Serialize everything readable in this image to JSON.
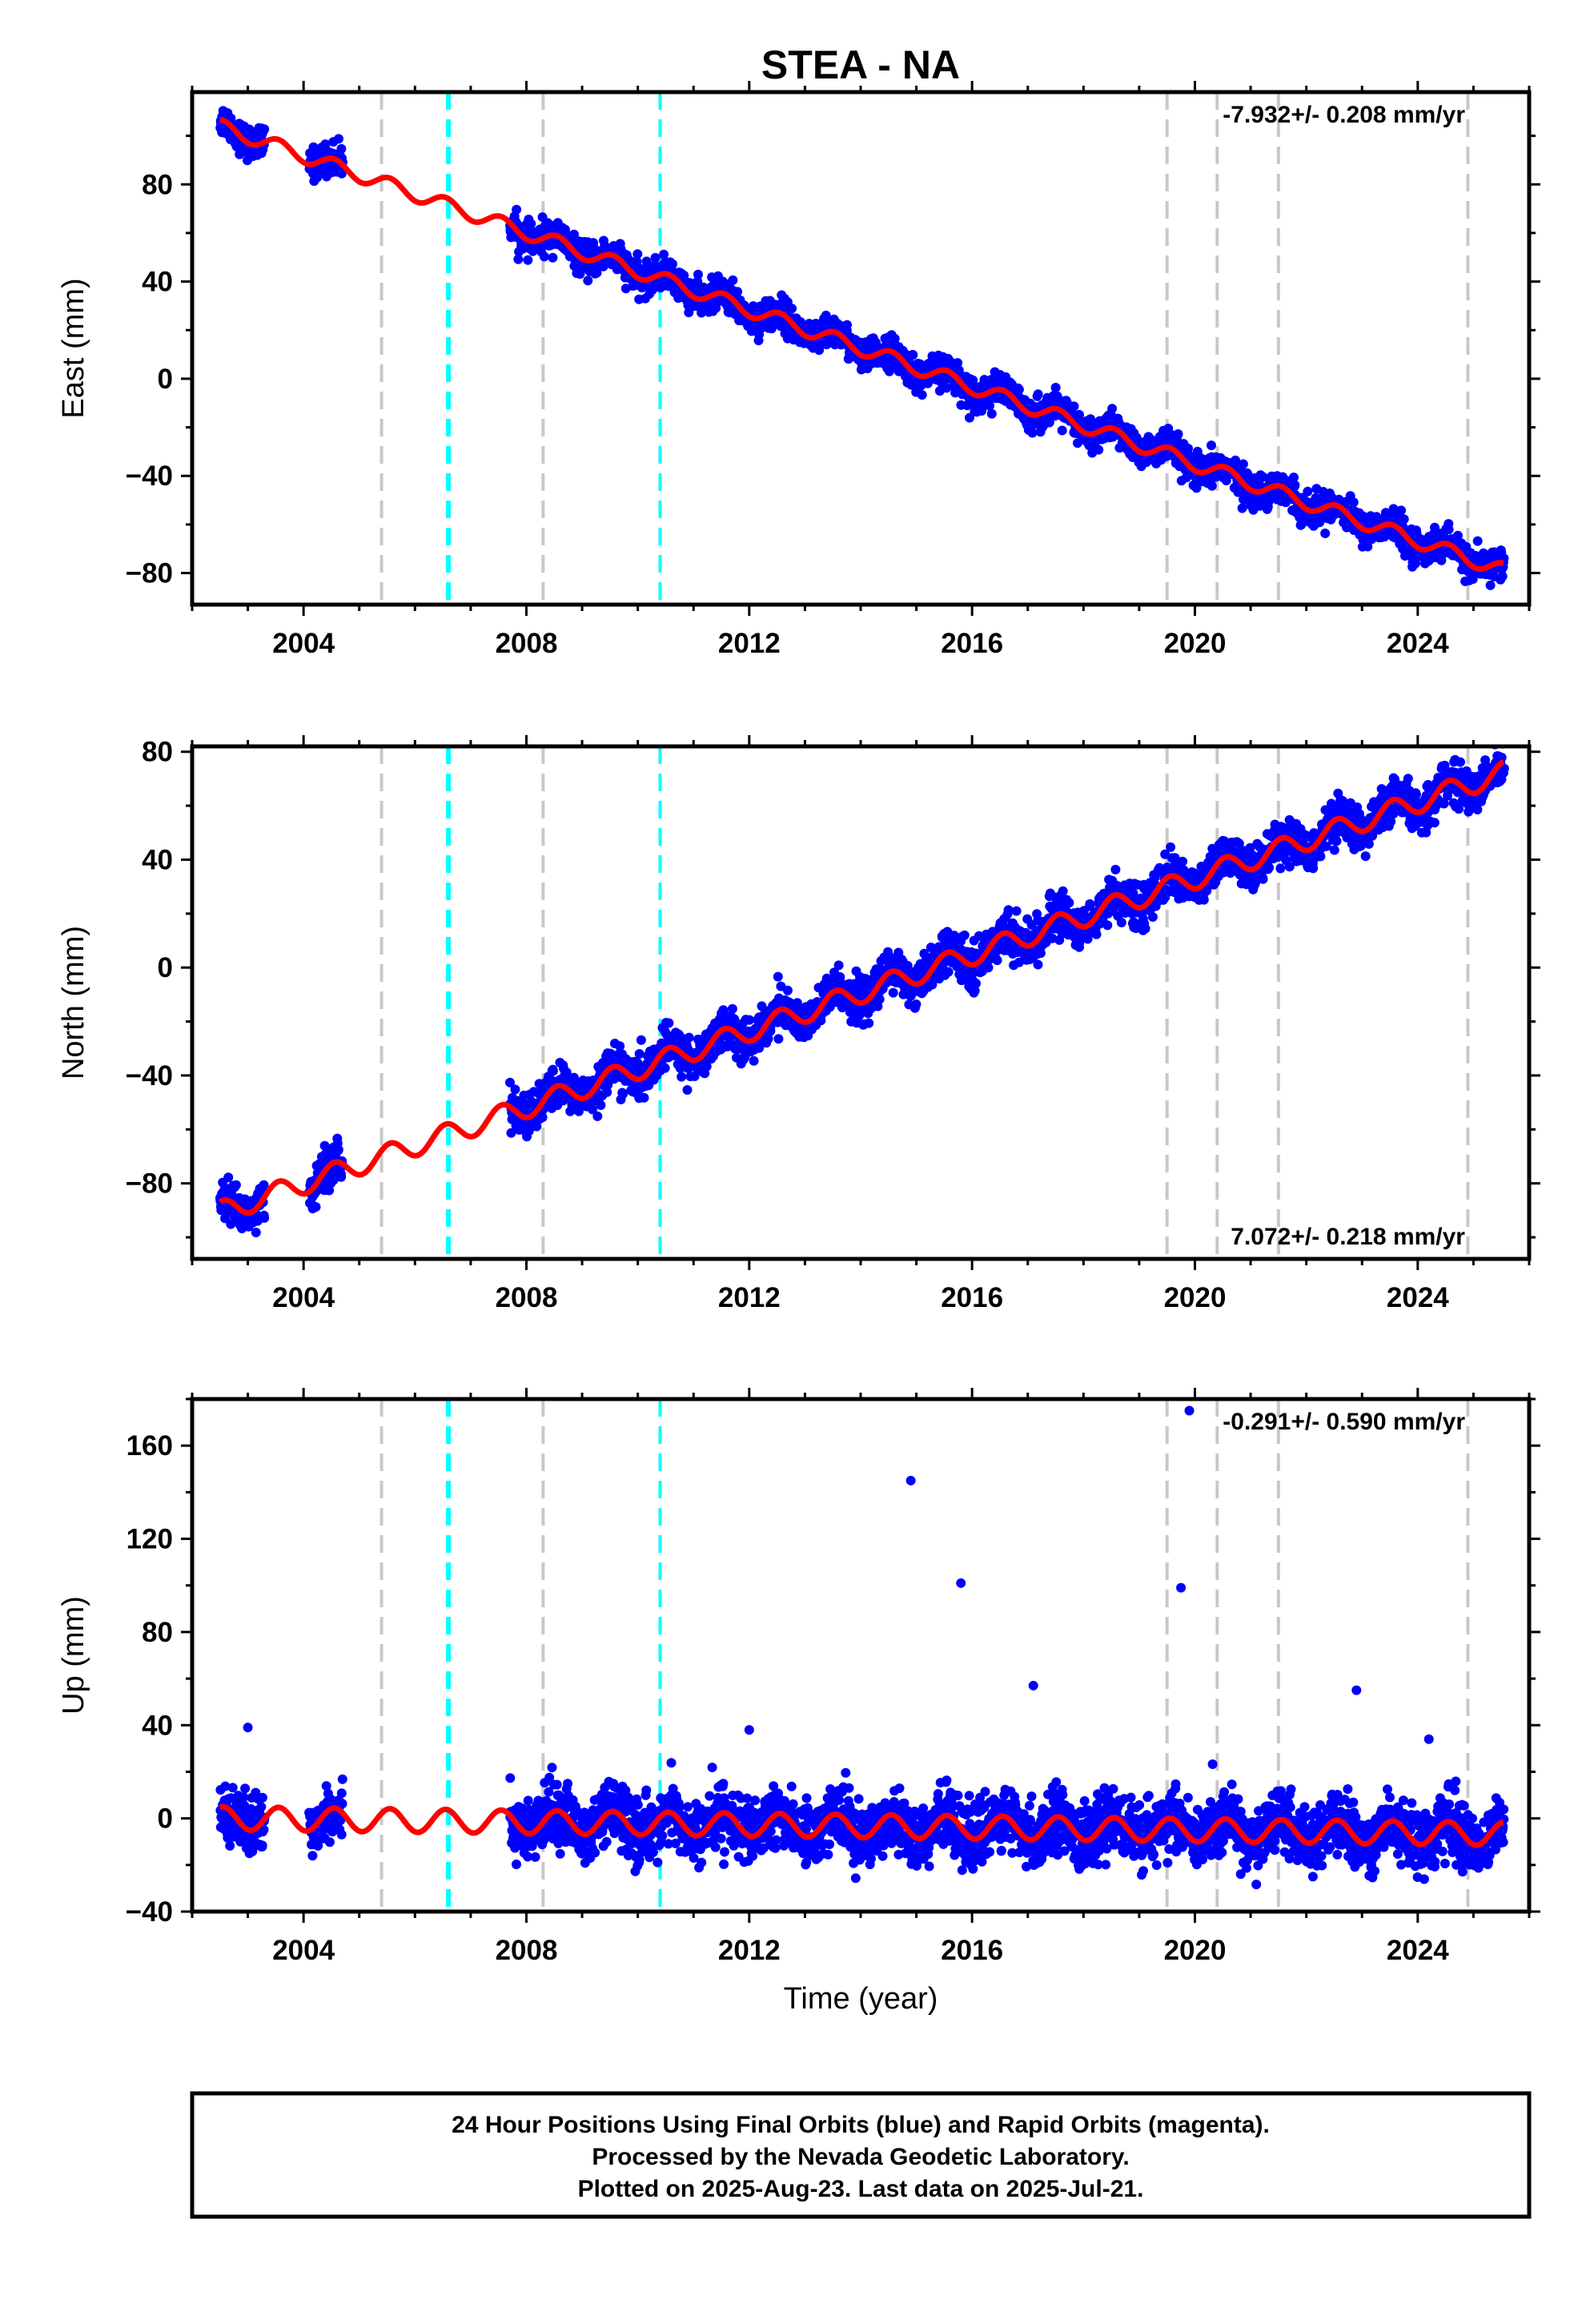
{
  "title": "STEA - NA",
  "xlabel": "Time (year)",
  "footer": [
    "24 Hour Positions Using Final Orbits (blue) and Rapid Orbits (magenta).",
    "Processed by the Nevada Geodetic Laboratory.",
    "Plotted on 2025-Aug-23. Last data on 2025-Jul-21."
  ],
  "chart_data": [
    {
      "type": "scatter",
      "ylabel": "East (mm)",
      "rate_label": "-7.932+/- 0.208 mm/yr",
      "xlim": [
        2002.0,
        2026.0
      ],
      "ylim": [
        -93,
        118
      ],
      "xticks": [
        2004,
        2008,
        2012,
        2016,
        2020,
        2024
      ],
      "yticks": [
        -80,
        -40,
        0,
        40,
        80
      ],
      "grid": false,
      "trend": {
        "rate": -7.932,
        "ref_year": 2002.6,
        "ref_value": 103,
        "seasonal_amp": 3
      },
      "data_segments": [
        [
          2002.5,
          2003.3
        ],
        [
          2004.1,
          2004.7
        ],
        [
          2007.7,
          2025.55
        ]
      ],
      "gray_lines_x": [
        2005.4,
        2008.3,
        2019.5,
        2020.4,
        2021.5,
        2024.9
      ],
      "cyan_lines_x": [
        2006.6,
        2010.4
      ],
      "series": [
        {
          "values_color": "#0000ff",
          "kind": "points"
        },
        {
          "values_color": "#ff0000",
          "kind": "model"
        }
      ]
    },
    {
      "type": "scatter",
      "ylabel": "North (mm)",
      "rate_label": "7.072+/- 0.218 mm/yr",
      "xlim": [
        2002.0,
        2026.0
      ],
      "ylim": [
        -108,
        82
      ],
      "xticks": [
        2004,
        2008,
        2012,
        2016,
        2020,
        2024
      ],
      "yticks": [
        -80,
        -40,
        0,
        40,
        80
      ],
      "grid": false,
      "trend": {
        "rate": 7.072,
        "ref_year": 2002.6,
        "ref_value": -90,
        "seasonal_amp": 4
      },
      "data_segments": [
        [
          2002.5,
          2003.3
        ],
        [
          2004.1,
          2004.7
        ],
        [
          2007.7,
          2025.55
        ]
      ],
      "gray_lines_x": [
        2005.4,
        2008.3,
        2019.5,
        2020.4,
        2021.5,
        2024.9
      ],
      "cyan_lines_x": [
        2006.6,
        2010.4
      ],
      "series": [
        {
          "values_color": "#0000ff",
          "kind": "points"
        },
        {
          "values_color": "#ff0000",
          "kind": "model"
        }
      ]
    },
    {
      "type": "scatter",
      "ylabel": "Up (mm)",
      "rate_label": "-0.291+/- 0.590 mm/yr",
      "xlim": [
        2002.0,
        2026.0
      ],
      "ylim": [
        -40,
        180
      ],
      "xticks": [
        2004,
        2008,
        2012,
        2016,
        2020,
        2024
      ],
      "yticks": [
        -40,
        0,
        40,
        80,
        120,
        160
      ],
      "grid": false,
      "trend": {
        "rate": -0.291,
        "ref_year": 2002.6,
        "ref_value": 0,
        "seasonal_amp": 5
      },
      "data_segments": [
        [
          2002.5,
          2003.3
        ],
        [
          2004.1,
          2004.7
        ],
        [
          2007.7,
          2025.55
        ]
      ],
      "gray_lines_x": [
        2005.4,
        2008.3,
        2019.5,
        2020.4,
        2021.5,
        2024.9
      ],
      "cyan_lines_x": [
        2006.6,
        2010.4
      ],
      "outliers": [
        [
          2014.9,
          145
        ],
        [
          2015.8,
          101
        ],
        [
          2019.9,
          175
        ],
        [
          2019.75,
          99
        ],
        [
          2017.1,
          57
        ],
        [
          2022.9,
          55
        ],
        [
          2003.0,
          39
        ],
        [
          2012.0,
          38
        ],
        [
          2024.2,
          34
        ]
      ],
      "series": [
        {
          "values_color": "#0000ff",
          "kind": "points"
        },
        {
          "values_color": "#ff0000",
          "kind": "model"
        }
      ]
    }
  ]
}
